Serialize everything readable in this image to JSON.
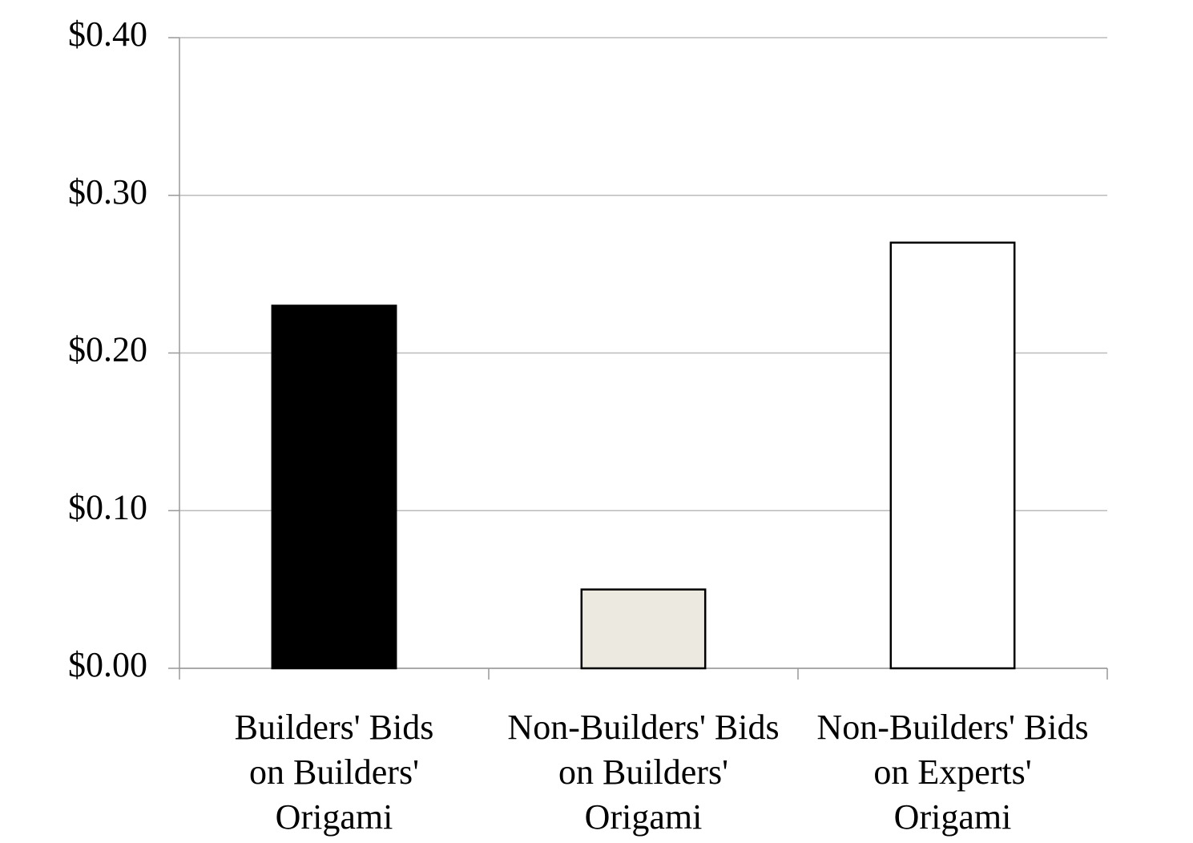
{
  "chart_data": {
    "type": "bar",
    "categories": [
      "Builders' Bids\non Builders'\nOrigami",
      "Non-Builders' Bids\non Builders'\nOrigami",
      "Non-Builders' Bids\non Experts'\nOrigami"
    ],
    "values": [
      0.23,
      0.05,
      0.27
    ],
    "colors": [
      "#000000",
      "#ece9e1",
      "#ffffff"
    ],
    "ylim": [
      0,
      0.4
    ],
    "yticks": [
      {
        "value": 0,
        "label": "$0.00"
      },
      {
        "value": 0.1,
        "label": "$0.10"
      },
      {
        "value": 0.2,
        "label": "$0.20"
      },
      {
        "value": 0.3,
        "label": "$0.30"
      },
      {
        "value": 0.4,
        "label": "$0.40"
      }
    ],
    "grid": true
  }
}
